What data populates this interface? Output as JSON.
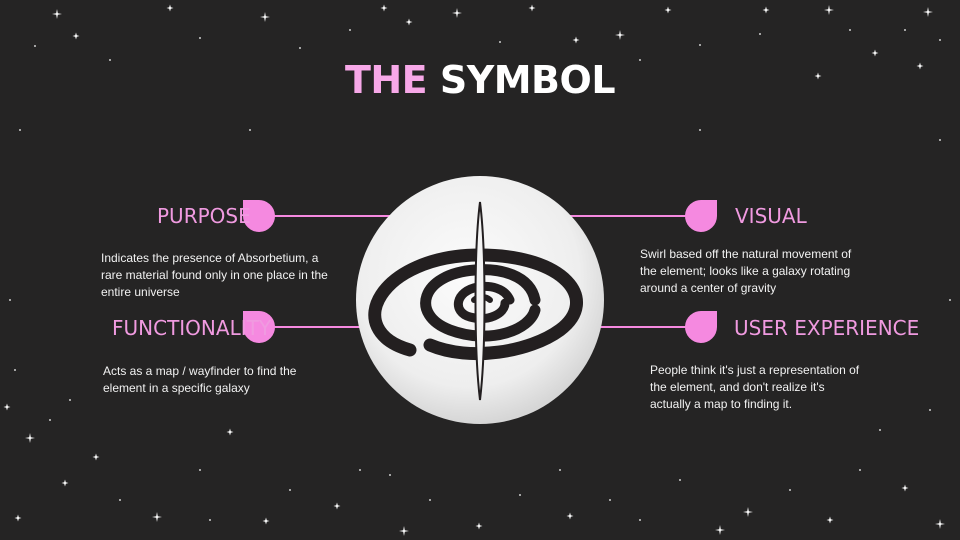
{
  "title": {
    "lead": "THE",
    "rest": "SYMBOL"
  },
  "sections": [
    {
      "heading": "PURPOSE",
      "text": "Indicates the presence of Absorbetium, a rare material found only in one place in the entire universe"
    },
    {
      "heading": "FUNCTIONALITY",
      "text": "Acts as a map / wayfinder to find the element in a specific galaxy"
    },
    {
      "heading": "VISUAL",
      "text": "Swirl based off the natural movement of the element; looks like a galaxy rotating around a center of gravity"
    },
    {
      "heading": "USER EXPERIENCE",
      "text": "People think it's just a representation of the element, and don't realize it's actually a map to finding it."
    }
  ],
  "colors": {
    "background": "#252424",
    "accent": "#f7a8e8",
    "marker": "#f589e0",
    "text": "#f2f2f2",
    "globe": "#f1f1f1",
    "swirl": "#231f20"
  },
  "icons": [
    "star-sparkle-icon",
    "teardrop-marker-icon",
    "galaxy-swirl-symbol"
  ]
}
